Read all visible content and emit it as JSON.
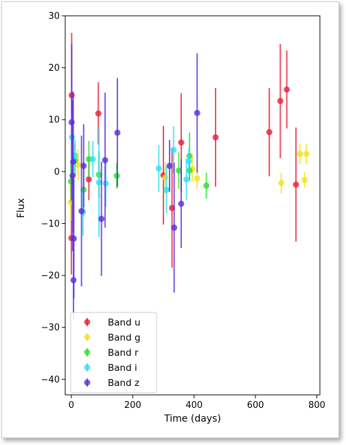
{
  "chart_data": {
    "type": "scatter",
    "xlabel": "Time (days)",
    "ylabel": "Flux",
    "xlim": [
      -20,
      810
    ],
    "ylim": [
      -43,
      30
    ],
    "xticks": [
      0,
      200,
      400,
      600,
      800
    ],
    "yticks": [
      30,
      20,
      10,
      0,
      -10,
      -20,
      -30,
      -40
    ],
    "grid": false,
    "legend_position": "lower-left",
    "series": [
      {
        "name": "Band u",
        "color": "#e8203a",
        "points": [
          {
            "x": 1,
            "y": 14.7,
            "err": 12.0
          },
          {
            "x": 0,
            "y": -12.8,
            "err": 7.0
          },
          {
            "x": 57,
            "y": -1.5,
            "err": 4.0
          },
          {
            "x": 88,
            "y": 11.2,
            "err": 6.0
          },
          {
            "x": 300,
            "y": -0.7,
            "err": 9.5
          },
          {
            "x": 328,
            "y": -7.0,
            "err": 11.5
          },
          {
            "x": 358,
            "y": 5.6,
            "err": 9.5
          },
          {
            "x": 470,
            "y": 6.6,
            "err": 9.5
          },
          {
            "x": 645,
            "y": 7.6,
            "err": 8.5
          },
          {
            "x": 681,
            "y": 13.6,
            "err": 11.0
          },
          {
            "x": 702,
            "y": 15.8,
            "err": 7.5
          },
          {
            "x": 732,
            "y": -2.5,
            "err": 11.0
          }
        ]
      },
      {
        "name": "Band g",
        "color": "#f5e21f",
        "points": [
          {
            "x": -2,
            "y": -5.9,
            "err": 3.5
          },
          {
            "x": 22,
            "y": 1.3,
            "err": 3.0
          },
          {
            "x": 306,
            "y": -1.2,
            "err": 3.0
          },
          {
            "x": 395,
            "y": 0.5,
            "err": 2.5
          },
          {
            "x": 410,
            "y": -1.3,
            "err": 2.0
          },
          {
            "x": 684,
            "y": -2.2,
            "err": 2.0
          },
          {
            "x": 745,
            "y": 3.4,
            "err": 2.0
          },
          {
            "x": 760,
            "y": -1.6,
            "err": 1.5
          },
          {
            "x": 766,
            "y": 3.4,
            "err": 2.0
          }
        ]
      },
      {
        "name": "Band r",
        "color": "#2ee02e",
        "points": [
          {
            "x": -1,
            "y": -1.9,
            "err": 4.0
          },
          {
            "x": 12,
            "y": 2.2,
            "err": 3.0
          },
          {
            "x": 40,
            "y": -3.5,
            "err": 5.0
          },
          {
            "x": 57,
            "y": 2.4,
            "err": 3.5
          },
          {
            "x": 90,
            "y": -0.6,
            "err": 4.5
          },
          {
            "x": 148,
            "y": -0.8,
            "err": 2.5
          },
          {
            "x": 350,
            "y": 0.2,
            "err": 3.5
          },
          {
            "x": 385,
            "y": 3.0,
            "err": 4.5
          },
          {
            "x": 385,
            "y": 0.2,
            "err": 2.0
          },
          {
            "x": 440,
            "y": -2.7,
            "err": 2.5
          }
        ]
      },
      {
        "name": "Band i",
        "color": "#2ee0f5",
        "points": [
          {
            "x": 2,
            "y": 6.6,
            "err": 5.0
          },
          {
            "x": 12,
            "y": 3.1,
            "err": 3.0
          },
          {
            "x": 38,
            "y": -7.8,
            "err": 4.5
          },
          {
            "x": 70,
            "y": 2.4,
            "err": 3.5
          },
          {
            "x": 90,
            "y": -2.1,
            "err": 10.5
          },
          {
            "x": 112,
            "y": -2.3,
            "err": 4.5
          },
          {
            "x": 285,
            "y": 0.6,
            "err": 4.5
          },
          {
            "x": 310,
            "y": -3.5,
            "err": 4.5
          },
          {
            "x": 333,
            "y": 4.2,
            "err": 4.5
          },
          {
            "x": 375,
            "y": -1.5,
            "err": 4.0
          },
          {
            "x": 383,
            "y": 2.0,
            "err": 2.5
          }
        ]
      },
      {
        "name": "Band z",
        "color": "#5a2ee0",
        "points": [
          {
            "x": 1,
            "y": 9.5,
            "err": 15.0
          },
          {
            "x": 4,
            "y": -0.8,
            "err": 14.5
          },
          {
            "x": 6,
            "y": 1.9,
            "err": 13.5
          },
          {
            "x": 8,
            "y": -12.9,
            "err": 11.5
          },
          {
            "x": 7,
            "y": -20.9,
            "err": 7.5
          },
          {
            "x": 33,
            "y": -7.6,
            "err": 14.5
          },
          {
            "x": 40,
            "y": 1.1,
            "err": 8.0
          },
          {
            "x": 98,
            "y": -9.1,
            "err": 11.0
          },
          {
            "x": 110,
            "y": 2.2,
            "err": 13.0
          },
          {
            "x": 150,
            "y": 7.5,
            "err": 10.5
          },
          {
            "x": 320,
            "y": 1.1,
            "err": 5.0
          },
          {
            "x": 335,
            "y": -10.8,
            "err": 12.5
          },
          {
            "x": 358,
            "y": -6.2,
            "err": 8.5
          },
          {
            "x": 410,
            "y": 11.3,
            "err": 11.5
          }
        ]
      }
    ]
  }
}
